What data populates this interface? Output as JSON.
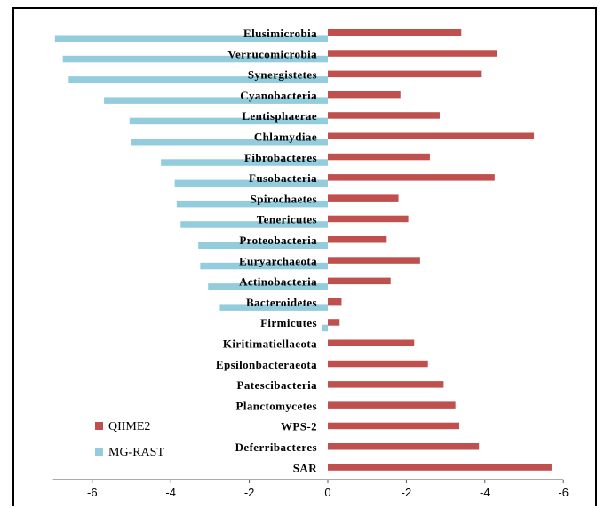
{
  "chart_data": {
    "type": "bar",
    "orientation": "horizontal",
    "x_axis_reversed": true,
    "xlim": [
      7,
      -6
    ],
    "xticks": [
      {
        "value": 6,
        "label": "-6"
      },
      {
        "value": 4,
        "label": "-4"
      },
      {
        "value": 2,
        "label": "-2"
      },
      {
        "value": 0,
        "label": "0"
      },
      {
        "value": -2,
        "label": "-2"
      },
      {
        "value": -4,
        "label": "-4"
      },
      {
        "value": -6,
        "label": "-6"
      }
    ],
    "categories": [
      "Elusimicrobia",
      "Verrucomicrobia",
      "Synergistetes",
      "Cyanobacteria",
      "Lentisphaerae",
      "Chlamydiae",
      "Fibrobacteres",
      "Fusobacteria",
      "Spirochaetes",
      "Tenericutes",
      "Proteobacteria",
      "Euryarchaeota",
      "Actinobacteria",
      "Bacteroidetes",
      "Firmicutes",
      "Kiritimatiellaeota",
      "Epsilonbacteraeota",
      "Patescibacteria",
      "Planctomycetes",
      "WPS-2",
      "Deferribacteres",
      "SAR"
    ],
    "series": [
      {
        "name": "QIIME2",
        "color": "#c0504d",
        "values": [
          -3.4,
          -4.3,
          -3.9,
          -1.85,
          -2.85,
          -5.25,
          -2.6,
          -4.25,
          -1.8,
          -2.05,
          -1.5,
          -2.35,
          -1.6,
          -0.35,
          -0.3,
          -2.2,
          -2.55,
          -2.95,
          -3.25,
          -3.35,
          -3.85,
          -5.7
        ]
      },
      {
        "name": "MG-RAST",
        "color": "#93cddd",
        "values": [
          6.95,
          6.75,
          6.6,
          5.7,
          5.05,
          5.0,
          4.25,
          3.9,
          3.85,
          3.75,
          3.3,
          3.25,
          3.05,
          2.75,
          0.15,
          0,
          0,
          0,
          0,
          0,
          0,
          0
        ]
      }
    ],
    "legend": {
      "placement": "bottom-left",
      "entries": [
        "QIIME2",
        "MG-RAST"
      ]
    },
    "grid": false
  }
}
